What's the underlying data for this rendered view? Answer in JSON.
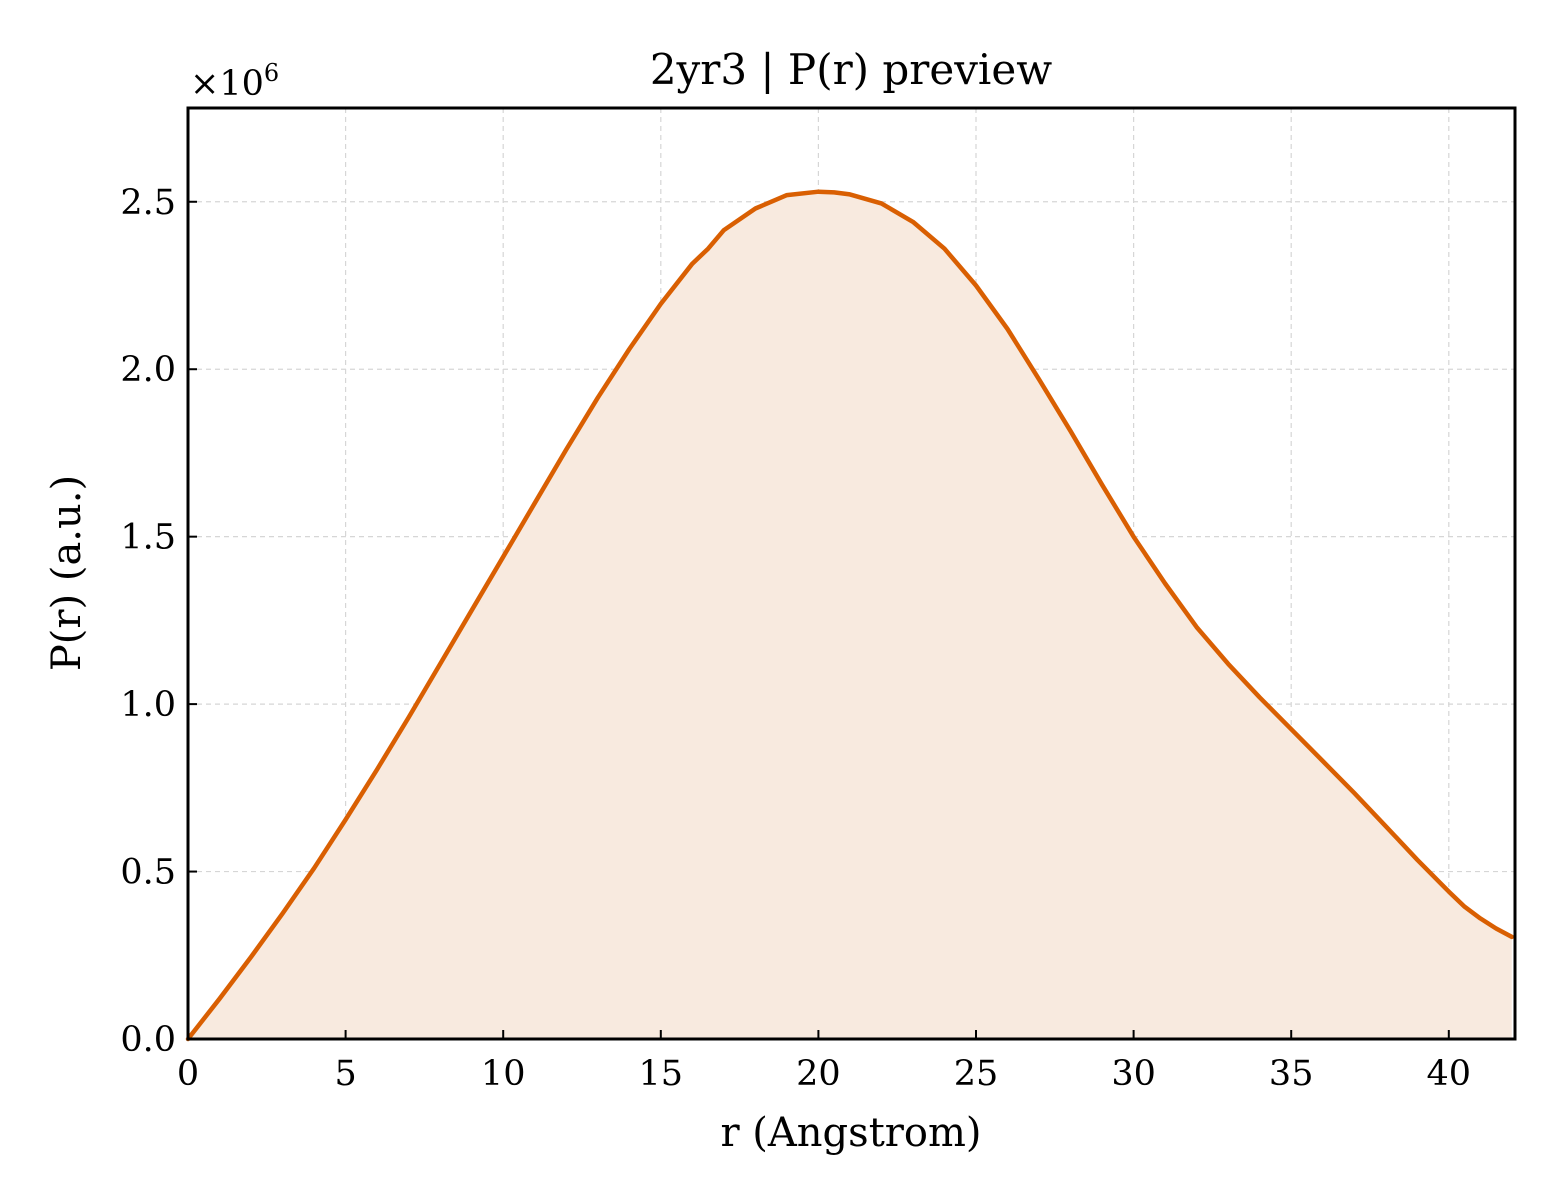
{
  "chart_data": {
    "type": "area",
    "title": "2yr3 | P(r) preview",
    "xlabel": "r (Angstrom)",
    "ylabel": "P(r) (a.u.)",
    "y_scale_factor_text": "×10",
    "y_scale_factor_exponent": "6",
    "xlim": [
      0,
      42.1
    ],
    "ylim": [
      0,
      2.78
    ],
    "y_units_multiplier": 1000000,
    "grid": true,
    "x_ticks": [
      "0",
      "5",
      "10",
      "15",
      "20",
      "25",
      "30",
      "35",
      "40"
    ],
    "x_tick_values": [
      0,
      5,
      10,
      15,
      20,
      25,
      30,
      35,
      40
    ],
    "y_ticks": [
      "0.0",
      "0.5",
      "1.0",
      "1.5",
      "2.0",
      "2.5"
    ],
    "y_tick_values": [
      0,
      0.5,
      1.0,
      1.5,
      2.0,
      2.5
    ],
    "series": [
      {
        "line_color": "#d95f02",
        "fill_color": "#f8eadf",
        "points": [
          [
            0,
            0.0
          ],
          [
            1,
            0.12
          ],
          [
            2,
            0.245
          ],
          [
            3,
            0.375
          ],
          [
            4,
            0.51
          ],
          [
            5,
            0.655
          ],
          [
            6,
            0.805
          ],
          [
            7,
            0.96
          ],
          [
            8,
            1.12
          ],
          [
            9,
            1.28
          ],
          [
            10,
            1.44
          ],
          [
            11,
            1.6
          ],
          [
            12,
            1.76
          ],
          [
            13,
            1.915
          ],
          [
            14,
            2.06
          ],
          [
            15,
            2.195
          ],
          [
            16,
            2.315
          ],
          [
            16.5,
            2.36
          ],
          [
            17,
            2.415
          ],
          [
            18,
            2.48
          ],
          [
            19,
            2.52
          ],
          [
            20,
            2.53
          ],
          [
            20.5,
            2.528
          ],
          [
            21,
            2.522
          ],
          [
            22,
            2.495
          ],
          [
            23,
            2.44
          ],
          [
            24,
            2.36
          ],
          [
            25,
            2.25
          ],
          [
            26,
            2.12
          ],
          [
            27,
            1.97
          ],
          [
            28,
            1.815
          ],
          [
            29,
            1.655
          ],
          [
            30,
            1.5
          ],
          [
            31,
            1.36
          ],
          [
            32,
            1.23
          ],
          [
            33,
            1.12
          ],
          [
            34,
            1.02
          ],
          [
            35,
            0.925
          ],
          [
            36,
            0.83
          ],
          [
            37,
            0.735
          ],
          [
            38,
            0.635
          ],
          [
            39,
            0.535
          ],
          [
            40,
            0.44
          ],
          [
            40.5,
            0.395
          ],
          [
            41,
            0.36
          ],
          [
            41.5,
            0.33
          ],
          [
            42,
            0.305
          ]
        ]
      }
    ]
  }
}
